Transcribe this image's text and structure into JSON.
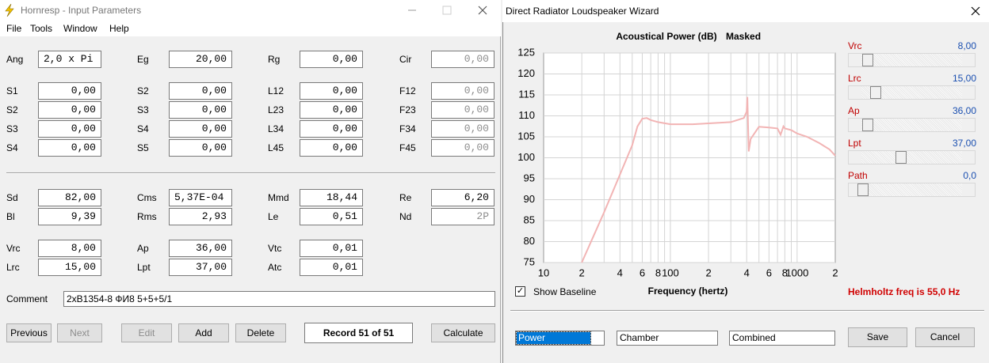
{
  "left_window": {
    "title": "Hornresp - Input Parameters",
    "menu": [
      "File",
      "Tools",
      "Window",
      "Help"
    ],
    "rows": [
      [
        {
          "label": "Ang",
          "value": "2,0 x Pi",
          "align": "left"
        },
        {
          "label": "Eg",
          "value": "20,00"
        },
        {
          "label": "Rg",
          "value": "0,00"
        },
        {
          "label": "Cir",
          "value": "0,00",
          "disabled": true
        }
      ],
      [
        {
          "label": "S1",
          "value": "0,00"
        },
        {
          "label": "S2",
          "value": "0,00"
        },
        {
          "label": "L12",
          "value": "0,00"
        },
        {
          "label": "F12",
          "value": "0,00",
          "disabled": true
        }
      ],
      [
        {
          "label": "S2",
          "value": "0,00"
        },
        {
          "label": "S3",
          "value": "0,00"
        },
        {
          "label": "L23",
          "value": "0,00"
        },
        {
          "label": "F23",
          "value": "0,00",
          "disabled": true
        }
      ],
      [
        {
          "label": "S3",
          "value": "0,00"
        },
        {
          "label": "S4",
          "value": "0,00"
        },
        {
          "label": "L34",
          "value": "0,00"
        },
        {
          "label": "F34",
          "value": "0,00",
          "disabled": true
        }
      ],
      [
        {
          "label": "S4",
          "value": "0,00"
        },
        {
          "label": "S5",
          "value": "0,00"
        },
        {
          "label": "L45",
          "value": "0,00"
        },
        {
          "label": "F45",
          "value": "0,00",
          "disabled": true
        }
      ],
      [
        {
          "label": "Sd",
          "value": "82,00"
        },
        {
          "label": "Cms",
          "value": "5,37E-04",
          "align": "left"
        },
        {
          "label": "Mmd",
          "value": "18,44"
        },
        {
          "label": "Re",
          "value": "6,20"
        }
      ],
      [
        {
          "label": "Bl",
          "value": "9,39"
        },
        {
          "label": "Rms",
          "value": "2,93"
        },
        {
          "label": "Le",
          "value": "0,51"
        },
        {
          "label": "Nd",
          "value": "2P",
          "disabled": true
        }
      ],
      [
        {
          "label": "Vrc",
          "value": "8,00"
        },
        {
          "label": "Ap",
          "value": "36,00"
        },
        {
          "label": "Vtc",
          "value": "0,01"
        }
      ],
      [
        {
          "label": "Lrc",
          "value": "15,00"
        },
        {
          "label": "Lpt",
          "value": "37,00"
        },
        {
          "label": "Atc",
          "value": "0,01"
        }
      ]
    ],
    "comment_label": "Comment",
    "comment": "2xB1354-8 ФИ8 5+5+5/1",
    "buttons": [
      {
        "label": "Previous"
      },
      {
        "label": "Next",
        "disabled": true
      },
      {
        "label": "Edit",
        "disabled": true
      },
      {
        "label": "Add"
      },
      {
        "label": "Delete"
      }
    ],
    "record": "Record 51 of 51",
    "calculate": "Calculate"
  },
  "right_window": {
    "title": "Direct Radiator Loudspeaker Wizard",
    "sliders": [
      {
        "name": "Vrc",
        "value": "8,00"
      },
      {
        "name": "Lrc",
        "value": "15,00"
      },
      {
        "name": "Ap",
        "value": "36,00"
      },
      {
        "name": "Lpt",
        "value": "37,00"
      },
      {
        "name": "Path",
        "value": "0,0"
      }
    ],
    "checkbox": {
      "label": "Show Baseline",
      "checked": true
    },
    "helmholtz": "Helmholtz freq is 55,0 Hz",
    "dropdowns": [
      "Power",
      "Chamber",
      "Combined"
    ],
    "buttons": [
      "Save",
      "Cancel"
    ]
  },
  "chart_data": {
    "type": "line",
    "title": "Acoustical Power (dB)",
    "annotation": "Masked",
    "x_label": "Frequency (hertz)",
    "log_x": true,
    "grid": true,
    "color": "#f2b4b4",
    "xlim": [
      10,
      2000
    ],
    "ylim": [
      75,
      125
    ],
    "xticks": [
      10,
      {
        "value": 20,
        "label": "2"
      },
      {
        "value": 40,
        "label": "4"
      },
      {
        "value": 60,
        "label": "6"
      },
      {
        "value": 80,
        "label": "8"
      },
      100,
      {
        "value": 200,
        "label": "2"
      },
      {
        "value": 400,
        "label": "4"
      },
      {
        "value": 600,
        "label": "6"
      },
      {
        "value": 800,
        "label": "8"
      },
      1000,
      {
        "value": 2000,
        "label": "2"
      }
    ],
    "xgrid": [
      20,
      30,
      40,
      50,
      60,
      70,
      80,
      90,
      100,
      200,
      300,
      400,
      500,
      600,
      700,
      800,
      900,
      1000
    ],
    "yticks": [
      75,
      80,
      85,
      90,
      95,
      100,
      105,
      110,
      115,
      120,
      125
    ],
    "x": [
      20,
      30,
      40,
      50,
      55,
      60,
      65,
      70,
      80,
      100,
      150,
      200,
      300,
      380,
      400,
      405,
      410,
      415,
      430,
      500,
      600,
      700,
      741,
      780,
      800,
      900,
      1000,
      1200,
      1500,
      1800,
      2000
    ],
    "values": [
      75,
      87,
      96,
      103,
      107.5,
      109.3,
      109.5,
      109,
      108.5,
      108,
      108,
      108.2,
      108.5,
      109.5,
      111,
      114.5,
      108,
      101.5,
      104.5,
      107.4,
      107.2,
      107,
      105.5,
      107.5,
      107,
      106.6,
      105.8,
      105,
      103.5,
      102,
      100.5
    ]
  }
}
